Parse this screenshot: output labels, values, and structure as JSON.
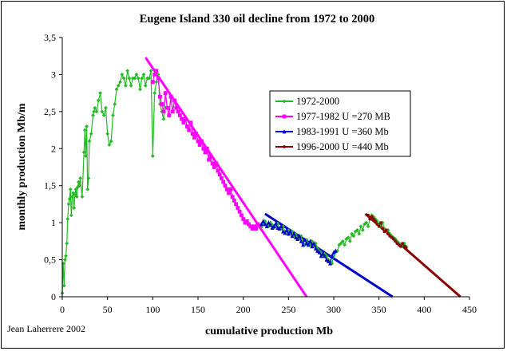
{
  "chart_data": {
    "type": "line",
    "title": "Eugene Island 330 oil decline from 1972 to 2000",
    "xlabel": "cumulative production Mb",
    "ylabel": "monthly production Mb/m",
    "xlim": [
      0,
      450
    ],
    "ylim": [
      0,
      3.5
    ],
    "x_ticks": [
      "0",
      "50",
      "100",
      "150",
      "200",
      "250",
      "300",
      "350",
      "400",
      "450"
    ],
    "y_ticks": [
      "0",
      "0,5",
      "1",
      "1,5",
      "2",
      "2,5",
      "3",
      "3,5"
    ],
    "grid": false,
    "legend_position": "center-right",
    "credit": "Jean Laherrere 2002",
    "series": [
      {
        "name": "1972-2000",
        "color": "#22bb22",
        "marker": "diamond",
        "kind": "data",
        "x": [
          0,
          1,
          2,
          3,
          4,
          5,
          6,
          7,
          8,
          9,
          10,
          11,
          12,
          13,
          14,
          15,
          16,
          17,
          18,
          19,
          20,
          22,
          24,
          25,
          26,
          27,
          28,
          29,
          30,
          32,
          34,
          35,
          36,
          38,
          40,
          42,
          44,
          46,
          48,
          50,
          52,
          54,
          56,
          58,
          60,
          62,
          64,
          66,
          68,
          70,
          72,
          74,
          76,
          78,
          80,
          82,
          84,
          86,
          88,
          90,
          92,
          94,
          96,
          98,
          100,
          102,
          104,
          106,
          108,
          110,
          112,
          114,
          116,
          118,
          120,
          122,
          124,
          126,
          128,
          130,
          132,
          134,
          136,
          138,
          140,
          142,
          144,
          146,
          148,
          150,
          152,
          154,
          156,
          158,
          160,
          162,
          164,
          166,
          168,
          170,
          172,
          174,
          176,
          178,
          180,
          182,
          184,
          186,
          188,
          190,
          192,
          194,
          196,
          198,
          200,
          202,
          204,
          206,
          208,
          210,
          212,
          214,
          216,
          218,
          220,
          222,
          224,
          226,
          228,
          230,
          232,
          234,
          236,
          238,
          240,
          242,
          244,
          246,
          248,
          250,
          252,
          254,
          256,
          258,
          260,
          262,
          264,
          266,
          268,
          270,
          272,
          274,
          276,
          278,
          280,
          282,
          284,
          286,
          288,
          290,
          292,
          294,
          296,
          298,
          300,
          302,
          304,
          306,
          308,
          310,
          312,
          314,
          316,
          318,
          320,
          322,
          324,
          326,
          328,
          330,
          332,
          334,
          336,
          338,
          340,
          342,
          344,
          346,
          348,
          350,
          352,
          354,
          356,
          358,
          360,
          362,
          364,
          366,
          368,
          370,
          372,
          374,
          376,
          378,
          380
        ],
        "y": [
          0.05,
          0.45,
          0.15,
          0.5,
          0.55,
          0.72,
          1.05,
          1.25,
          1.32,
          1.45,
          1.1,
          1.35,
          1.4,
          1.2,
          1.38,
          1.45,
          1.35,
          1.48,
          1.55,
          1.5,
          1.6,
          1.35,
          1.95,
          2.25,
          1.9,
          2.3,
          1.45,
          1.6,
          2.1,
          2.2,
          2.45,
          2.5,
          2.55,
          2.5,
          2.65,
          2.75,
          2.5,
          2.45,
          2.55,
          2.2,
          2.05,
          2.1,
          2.45,
          2.6,
          2.8,
          2.85,
          2.9,
          3.0,
          2.95,
          2.85,
          3.05,
          2.95,
          2.85,
          2.95,
          2.95,
          3.0,
          2.95,
          2.8,
          2.95,
          3.0,
          2.85,
          2.95,
          2.95,
          3.05,
          1.9,
          2.75,
          2.9,
          3.0,
          2.6,
          2.5,
          2.4,
          2.75,
          2.55,
          2.45,
          2.7,
          2.5,
          2.65,
          2.55,
          2.5,
          2.45,
          2.4,
          2.35,
          2.4,
          2.3,
          2.25,
          2.35,
          2.2,
          2.15,
          2.2,
          2.1,
          2.05,
          2.1,
          2.0,
          1.95,
          2.0,
          1.85,
          1.9,
          1.8,
          1.75,
          1.8,
          1.7,
          1.65,
          1.6,
          1.55,
          1.5,
          1.45,
          1.4,
          1.45,
          1.35,
          1.3,
          1.25,
          1.2,
          1.15,
          1.1,
          1.05,
          1.0,
          1.02,
          0.98,
          0.95,
          0.92,
          0.95,
          0.92,
          0.98,
          0.96,
          0.94,
          0.98,
          1.02,
          0.98,
          0.95,
          1.0,
          0.97,
          0.93,
          0.95,
          0.99,
          0.93,
          0.92,
          0.95,
          0.88,
          0.86,
          0.9,
          0.85,
          0.88,
          0.82,
          0.85,
          0.8,
          0.78,
          0.82,
          0.75,
          0.7,
          0.77,
          0.72,
          0.7,
          0.75,
          0.68,
          0.72,
          0.65,
          0.62,
          0.6,
          0.55,
          0.58,
          0.55,
          0.5,
          0.48,
          0.45,
          0.55,
          0.6,
          0.62,
          0.7,
          0.72,
          0.75,
          0.7,
          0.78,
          0.8,
          0.75,
          0.85,
          0.82,
          0.88,
          0.9,
          0.85,
          0.95,
          0.9,
          0.98,
          1.0,
          0.95,
          1.05,
          1.1,
          1.08,
          1.05,
          1.02,
          0.98,
          0.95,
          1.0,
          0.92,
          0.88,
          0.9,
          0.85,
          0.82,
          0.8,
          0.78,
          0.75,
          0.72,
          0.7,
          0.68,
          0.72,
          0.68
        ]
      },
      {
        "name": "1977-1982 U =270 MB",
        "color": "#ff00ff",
        "marker": "square",
        "kind": "data",
        "x": [
          100,
          102,
          104,
          106,
          108,
          110,
          112,
          114,
          116,
          118,
          120,
          122,
          124,
          126,
          128,
          130,
          132,
          134,
          136,
          138,
          140,
          142,
          144,
          146,
          148,
          150,
          152,
          154,
          156,
          158,
          160,
          162,
          164,
          166,
          168,
          170,
          172,
          174,
          176,
          178,
          180,
          182,
          184,
          186,
          188,
          190,
          192,
          194,
          196,
          198,
          200,
          202,
          204,
          206,
          208,
          210,
          212,
          214,
          216,
          218
        ],
        "y": [
          2.9,
          3.0,
          3.05,
          2.95,
          2.7,
          2.6,
          2.5,
          2.75,
          2.55,
          2.45,
          2.7,
          2.5,
          2.65,
          2.55,
          2.5,
          2.45,
          2.4,
          2.35,
          2.4,
          2.3,
          2.25,
          2.35,
          2.2,
          2.15,
          2.2,
          2.1,
          2.05,
          2.1,
          2.0,
          1.95,
          2.0,
          1.85,
          1.9,
          1.8,
          1.75,
          1.8,
          1.7,
          1.65,
          1.6,
          1.55,
          1.5,
          1.45,
          1.4,
          1.45,
          1.35,
          1.3,
          1.25,
          1.2,
          1.15,
          1.1,
          1.05,
          1.0,
          1.02,
          0.98,
          0.95,
          0.92,
          0.95,
          0.92,
          0.98,
          0.96
        ]
      },
      {
        "name": "1983-1991 U =360 Mb",
        "color": "#0000cc",
        "marker": "triangle",
        "kind": "data",
        "x": [
          220,
          222,
          224,
          226,
          228,
          230,
          232,
          234,
          236,
          238,
          240,
          242,
          244,
          246,
          248,
          250,
          252,
          254,
          256,
          258,
          260,
          262,
          264,
          266,
          268,
          270,
          272,
          274,
          276,
          278,
          280,
          282,
          284,
          286,
          288,
          290,
          292,
          294,
          296,
          298,
          300,
          302
        ],
        "y": [
          0.98,
          1.02,
          0.98,
          0.95,
          1.0,
          0.97,
          0.93,
          0.95,
          0.99,
          0.93,
          0.92,
          0.95,
          0.88,
          0.86,
          0.9,
          0.85,
          0.88,
          0.82,
          0.85,
          0.8,
          0.78,
          0.82,
          0.75,
          0.7,
          0.77,
          0.72,
          0.7,
          0.75,
          0.68,
          0.72,
          0.65,
          0.62,
          0.6,
          0.55,
          0.58,
          0.55,
          0.5,
          0.48,
          0.45,
          0.55,
          0.6,
          0.62
        ]
      },
      {
        "name": "1996-2000 U =440 Mb",
        "color": "#8b0000",
        "marker": "circle",
        "kind": "data",
        "x": [
          338,
          340,
          342,
          344,
          346,
          348,
          350,
          352,
          354,
          356,
          358,
          360,
          362,
          364,
          366,
          368,
          370,
          372,
          374,
          376,
          378,
          380
        ],
        "y": [
          1.1,
          1.05,
          1.08,
          1.05,
          1.02,
          0.98,
          0.95,
          1.0,
          0.92,
          0.88,
          0.9,
          0.85,
          0.82,
          0.8,
          0.78,
          0.75,
          0.72,
          0.7,
          0.68,
          0.72,
          0.68,
          0.66
        ]
      },
      {
        "color": "#ff00ff",
        "kind": "fit",
        "x": [
          92,
          270
        ],
        "y": [
          3.23,
          0
        ]
      },
      {
        "color": "#0000cc",
        "kind": "fit",
        "x": [
          224,
          365
        ],
        "y": [
          1.12,
          0
        ]
      },
      {
        "color": "#8b0000",
        "kind": "fit",
        "x": [
          335,
          440
        ],
        "y": [
          1.12,
          0
        ]
      }
    ]
  }
}
